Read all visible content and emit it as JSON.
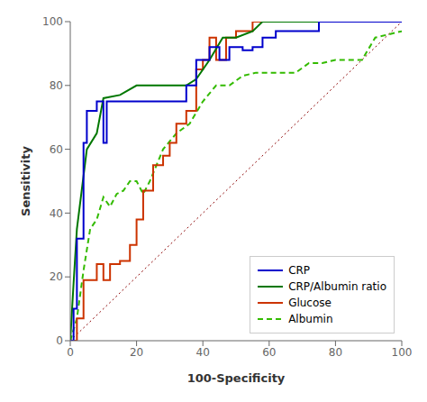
{
  "chart_data": {
    "type": "line",
    "title": "",
    "xlabel": "100-Specificity",
    "ylabel": "Sensitivity",
    "xlim": [
      0,
      100
    ],
    "ylim": [
      0,
      100
    ],
    "xticks": [
      0,
      20,
      40,
      60,
      80,
      100
    ],
    "yticks": [
      0,
      20,
      40,
      60,
      80,
      100
    ],
    "grid": false,
    "legend": "lower right",
    "series": [
      {
        "name": "CRP",
        "color": "#0000CC",
        "line_style": "solid",
        "x": [
          0,
          0,
          1,
          1,
          2,
          2,
          4,
          4,
          5,
          5,
          8,
          8,
          10,
          10,
          11,
          11,
          35,
          35,
          38,
          38,
          42,
          42,
          45,
          45,
          48,
          48,
          52,
          52,
          55,
          55,
          58,
          58,
          62,
          62,
          75,
          75,
          80,
          80,
          100
        ],
        "values": [
          0,
          0,
          0,
          10,
          10,
          32,
          32,
          62,
          62,
          72,
          72,
          75,
          75,
          62,
          62,
          75,
          75,
          80,
          80,
          88,
          88,
          92,
          92,
          88,
          88,
          92,
          92,
          91,
          91,
          92,
          92,
          95,
          95,
          97,
          97,
          100,
          100,
          100,
          100
        ]
      },
      {
        "name": "CRP/Albumin ratio",
        "color": "#007700",
        "line_style": "solid",
        "x": [
          0,
          0,
          1,
          1,
          2,
          2,
          5,
          5,
          8,
          8,
          10,
          10,
          15,
          15,
          20,
          20,
          35,
          35,
          38,
          38,
          42,
          42,
          46,
          46,
          50,
          50,
          55,
          55,
          58,
          58,
          75,
          75,
          100
        ],
        "values": [
          0,
          0,
          18,
          18,
          35,
          35,
          60,
          60,
          65,
          65,
          76,
          76,
          77,
          77,
          80,
          80,
          80,
          80,
          82,
          82,
          88,
          88,
          95,
          95,
          95,
          95,
          97,
          97,
          100,
          100,
          100,
          100,
          100
        ]
      },
      {
        "name": "Glucose",
        "color": "#CC3300",
        "line_style": "solid",
        "x": [
          0,
          0,
          2,
          2,
          4,
          4,
          5,
          5,
          8,
          8,
          10,
          10,
          12,
          12,
          15,
          15,
          18,
          18,
          20,
          20,
          22,
          22,
          25,
          25,
          28,
          28,
          30,
          30,
          32,
          32,
          35,
          35,
          38,
          38,
          40,
          40,
          42,
          42,
          44,
          44,
          47,
          47,
          50,
          50,
          55,
          55,
          58,
          58,
          62,
          62,
          100
        ],
        "values": [
          0,
          0,
          0,
          7,
          7,
          19,
          19,
          19,
          19,
          24,
          24,
          19,
          19,
          24,
          24,
          25,
          25,
          30,
          30,
          38,
          38,
          47,
          47,
          55,
          55,
          58,
          58,
          62,
          62,
          68,
          68,
          72,
          72,
          85,
          85,
          88,
          88,
          95,
          95,
          88,
          88,
          95,
          95,
          97,
          97,
          100,
          100,
          100,
          100,
          100,
          100
        ]
      },
      {
        "name": "Albumin",
        "color": "#33BB00",
        "line_style": "dashed",
        "x": [
          0,
          0,
          2,
          2,
          4,
          4,
          6,
          6,
          8,
          8,
          10,
          10,
          12,
          12,
          14,
          14,
          16,
          16,
          18,
          18,
          20,
          20,
          22,
          22,
          24,
          24,
          26,
          26,
          28,
          28,
          32,
          32,
          36,
          36,
          40,
          40,
          44,
          44,
          48,
          48,
          52,
          52,
          56,
          56,
          60,
          60,
          64,
          64,
          68,
          68,
          72,
          72,
          76,
          76,
          80,
          80,
          88,
          88,
          92,
          92,
          100
        ],
        "values": [
          0,
          0,
          7,
          7,
          22,
          22,
          35,
          35,
          38,
          38,
          45,
          45,
          42,
          42,
          46,
          46,
          47,
          47,
          50,
          50,
          50,
          50,
          46,
          46,
          50,
          50,
          55,
          55,
          60,
          60,
          65,
          65,
          68,
          68,
          75,
          75,
          80,
          80,
          80,
          80,
          83,
          83,
          84,
          84,
          84,
          84,
          84,
          84,
          84,
          84,
          87,
          87,
          87,
          87,
          88,
          88,
          88,
          88,
          95,
          95,
          97
        ]
      },
      {
        "color": "#8B0000",
        "line_style": "dotted",
        "x": [
          0,
          100
        ],
        "values": [
          0,
          100
        ]
      }
    ]
  }
}
